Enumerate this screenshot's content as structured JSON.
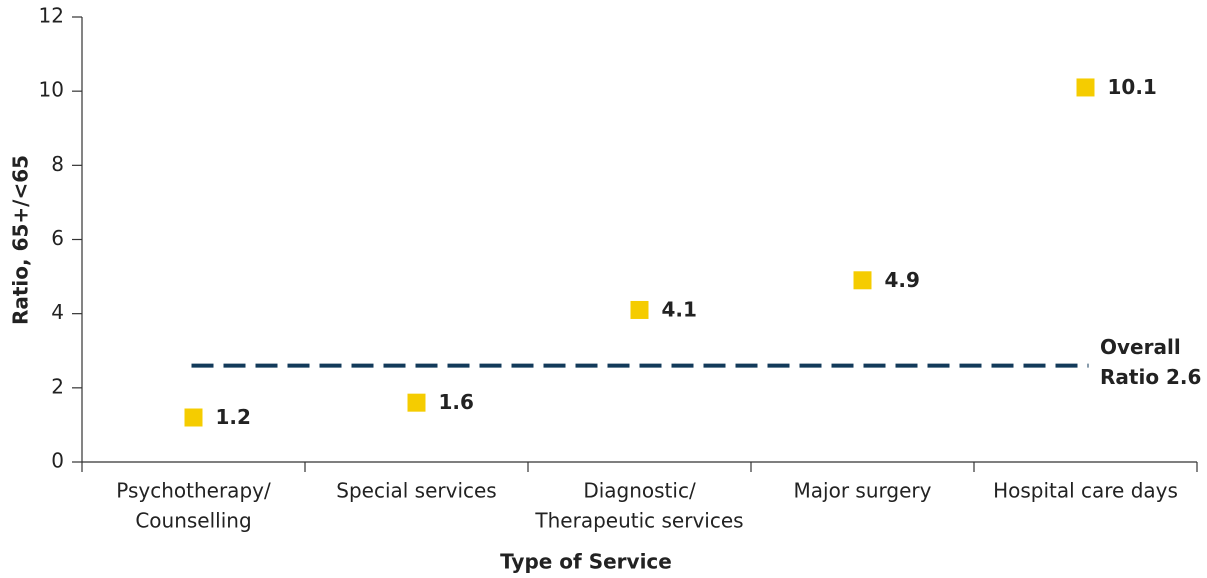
{
  "chart_data": {
    "type": "scatter",
    "x_label": "Type of Service",
    "y_label": "Ratio, 65+/<65",
    "categories": [
      [
        "Psychotherapy/",
        "Counselling"
      ],
      [
        "Special services"
      ],
      [
        "Diagnostic/",
        "Therapeutic services"
      ],
      [
        "Major surgery"
      ],
      [
        "Hospital care days"
      ]
    ],
    "values": [
      1.2,
      1.6,
      4.1,
      4.9,
      10.1
    ],
    "color": "#f5cc00",
    "ylim": [
      0,
      12
    ],
    "yticks": [
      0,
      2,
      4,
      6,
      8,
      10,
      12
    ],
    "reference_line": {
      "value": 2.6,
      "label": [
        "Overall",
        "Ratio 2.6"
      ],
      "color": "#123a5a"
    }
  }
}
